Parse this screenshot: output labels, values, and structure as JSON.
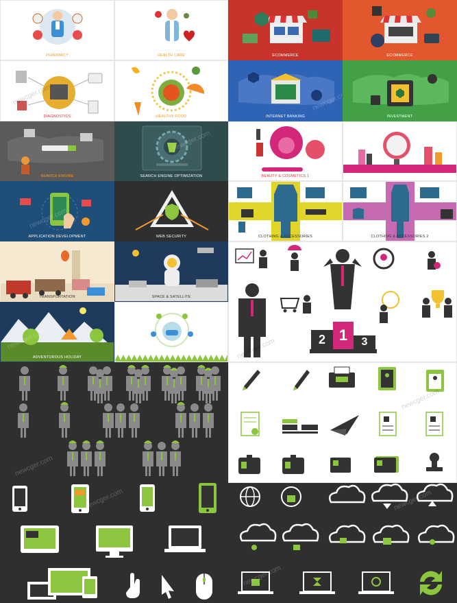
{
  "tiles": {
    "pharmacy": "PHARMACY",
    "health_care": "HEALTH CARE",
    "ecommerce_1": "ECOMMERCE",
    "ecommerce_2": "ECOMMERCE",
    "diagnostics": "DIAGNOSTICS",
    "healthy_food": "HEALTHY FOOD",
    "internet_banking": "INTERNET BANKING",
    "investment": "INVESTMENT",
    "search_engine": "SEARCH ENGINE",
    "seo": "SEARCH ENGINE OPTIMIZATION",
    "beauty_1": "BEAUTY & COSMETICS 1",
    "beauty_2": "BEAUTY & COSMETICS 2",
    "app_dev": "APPLICATION DEVELOPMENT",
    "web_security": "WEB SECURITY",
    "clothing_1": "CLOTHING & ACCESSORIES",
    "clothing_2": "CLOTHING & ACCESSORIES 2",
    "transportation": "TRANSPORTATION",
    "space": "SPACE & SATELLITE",
    "holiday": "ADVENTUROUS HOLIDAY"
  },
  "podium": {
    "first": "1",
    "second": "2",
    "third": "3"
  },
  "watermark": "newcger.com",
  "colors": {
    "accent_green": "#8cc63f",
    "accent_pink": "#d3277a",
    "dark_panel": "#2f2f2f",
    "red_tile": "#c8342c",
    "orange_tile": "#e2572d",
    "blue_tile": "#2f63b5",
    "green_tile": "#43a047"
  },
  "icons": [
    "pharmacy-icon",
    "health-care-icon",
    "shop-icon",
    "microscope-icon",
    "apple-icon",
    "bank-icon",
    "safe-icon",
    "search-icon",
    "gear-icon",
    "cosmetics-icon",
    "mirror-icon",
    "phone-icon",
    "shield-icon",
    "clothing-icon",
    "vehicles-icon",
    "astronaut-icon",
    "landscape-icon",
    "eco-icon",
    "businessman-icon",
    "podium-icon",
    "pen-icon",
    "fax-icon",
    "notebook-icon",
    "id-card-icon",
    "stamp-icon",
    "tablet-icon",
    "monitor-icon",
    "laptop-icon",
    "hand-cursor-icon",
    "arrow-cursor-icon",
    "mouse-icon",
    "globe-icon",
    "cloud-icon",
    "refresh-icon"
  ]
}
